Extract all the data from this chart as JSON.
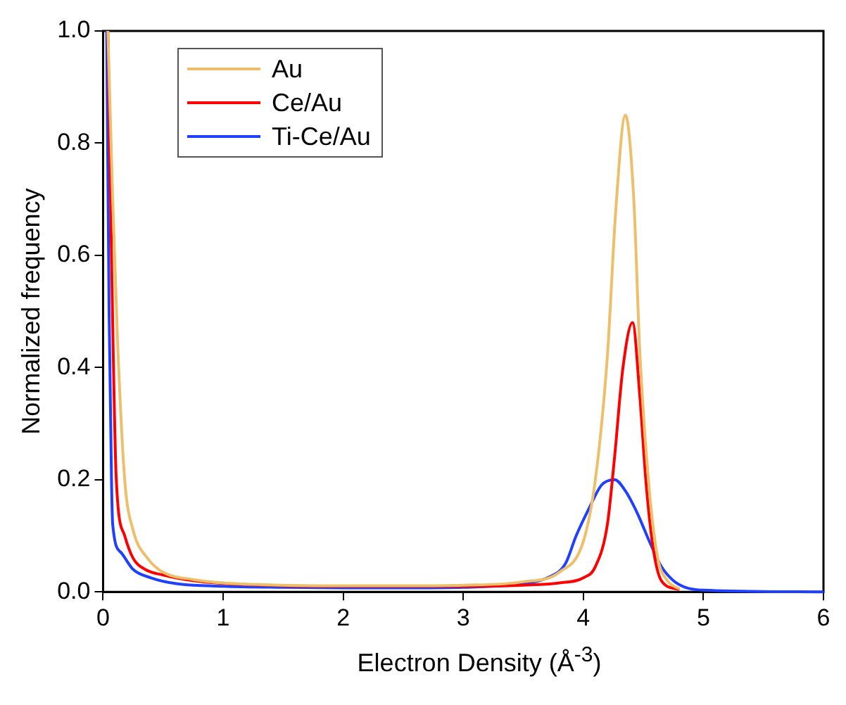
{
  "chart_data": {
    "type": "line",
    "xlabel": "Electron Density (Å$^{-3}$)",
    "ylabel": "Normalized frequency",
    "xlim": [
      0,
      6
    ],
    "xticks": [
      0,
      1,
      2,
      3,
      4,
      5,
      6
    ],
    "ylim": [
      0,
      1
    ],
    "yticks": [
      {
        "value": 0,
        "label": "0.0"
      },
      {
        "value": 0.2,
        "label": "0.2"
      },
      {
        "value": 0.4,
        "label": "0.4"
      },
      {
        "value": 0.6,
        "label": "0.6"
      },
      {
        "value": 0.8,
        "label": "0.8"
      },
      {
        "value": 1,
        "label": "1.0"
      }
    ],
    "grid": false,
    "legend": "top left",
    "marker": "none",
    "line_style": "solid",
    "series": [
      {
        "name": "Au",
        "color": "#eebf6a",
        "x": [
          0.04,
          0.08,
          0.12,
          0.18,
          0.25,
          0.37,
          0.5,
          0.75,
          1,
          1.5,
          2,
          2.5,
          3,
          3.5,
          3.8,
          4.0,
          4.1,
          4.2,
          4.27,
          4.35,
          4.42,
          4.47,
          4.55,
          4.62,
          4.7,
          4.8
        ],
        "values": [
          1.0,
          0.7,
          0.45,
          0.2,
          0.11,
          0.06,
          0.035,
          0.022,
          0.016,
          0.012,
          0.011,
          0.011,
          0.012,
          0.018,
          0.035,
          0.09,
          0.2,
          0.42,
          0.68,
          0.85,
          0.7,
          0.43,
          0.18,
          0.06,
          0.02,
          0.005
        ]
      },
      {
        "name": "Ce/Au",
        "color": "#ff0000",
        "x": [
          0.04,
          0.07,
          0.11,
          0.18,
          0.25,
          0.35,
          0.5,
          0.75,
          1,
          1.5,
          2,
          2.5,
          3,
          3.5,
          3.8,
          4.0,
          4.1,
          4.2,
          4.26,
          4.33,
          4.41,
          4.47,
          4.52,
          4.58,
          4.65,
          4.8
        ],
        "values": [
          1.0,
          0.6,
          0.2,
          0.1,
          0.06,
          0.04,
          0.03,
          0.02,
          0.015,
          0.011,
          0.01,
          0.01,
          0.01,
          0.012,
          0.016,
          0.025,
          0.045,
          0.12,
          0.24,
          0.4,
          0.48,
          0.35,
          0.2,
          0.08,
          0.02,
          0.004
        ]
      },
      {
        "name": "Ti-Ce/Au",
        "color": "#2040ff",
        "x": [
          0.03,
          0.05,
          0.07,
          0.08,
          0.15,
          0.25,
          0.4,
          0.6,
          1,
          1.5,
          2,
          2.5,
          3,
          3.5,
          3.7,
          3.85,
          3.94,
          4.05,
          4.15,
          4.26,
          4.35,
          4.45,
          4.55,
          4.65,
          4.75,
          4.85,
          5,
          6
        ],
        "values": [
          1.0,
          0.5,
          0.2,
          0.12,
          0.07,
          0.04,
          0.025,
          0.015,
          0.01,
          0.008,
          0.007,
          0.007,
          0.008,
          0.015,
          0.025,
          0.05,
          0.1,
          0.15,
          0.19,
          0.2,
          0.18,
          0.14,
          0.09,
          0.045,
          0.02,
          0.008,
          0.003,
          0
        ]
      }
    ]
  }
}
